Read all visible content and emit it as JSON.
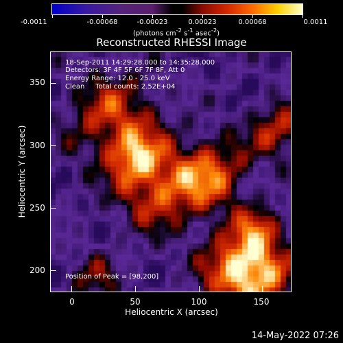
{
  "colorbar": {
    "tick_labels": [
      "-0.0011",
      "-0.00068",
      "-0.00023",
      "0.00023",
      "0.00068",
      "0.0011"
    ],
    "units_html": "(photons cm<sup>-2</sup> s<sup>-1</sup> asec<sup>-2</sup>)"
  },
  "title": "Reconstructed RHESSI Image",
  "info": {
    "time_range": "18-Sep-2011 14:29:28.000 to 14:35:28.000",
    "detectors": "Detectors: 3F 4F 5F 6F 7F 8F, Att 0",
    "energy": "Energy Range: 12.0 - 25.0 keV",
    "clean": "Clean     Total counts: 2.52E+04",
    "peak": "Position of Peak = [98,200]"
  },
  "axes": {
    "xlabel": "Heliocentric X (arcsec)",
    "ylabel": "Heliocentric Y (arcsec)",
    "x_ticks": [
      "0",
      "50",
      "100",
      "150"
    ],
    "y_ticks": [
      "200",
      "250",
      "300",
      "350"
    ]
  },
  "footer": {
    "date": "14-May-2022 07:26"
  }
}
